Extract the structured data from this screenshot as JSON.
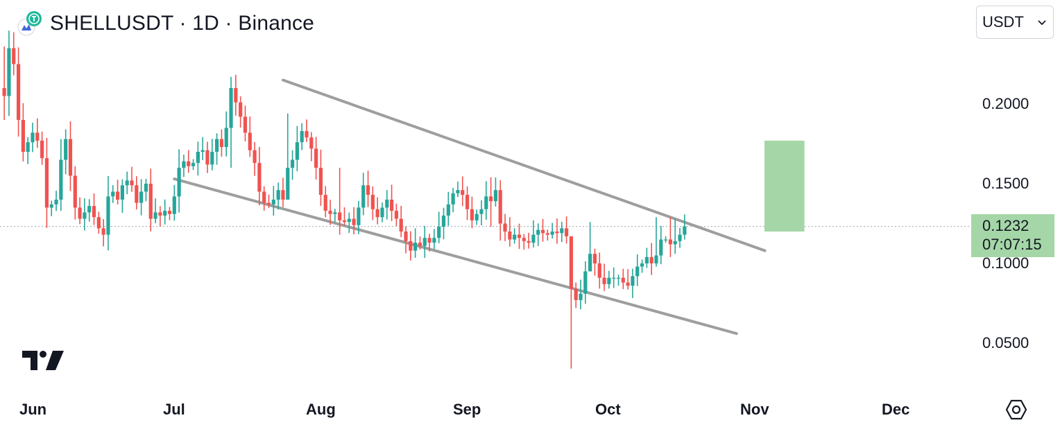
{
  "header": {
    "title": "SHELLUSDT · 1D · Binance"
  },
  "currency_select": {
    "value": "USDT",
    "icon": "chevron-down-icon"
  },
  "last_price": {
    "value": "0.1232",
    "countdown": "07:07:15"
  },
  "colors": {
    "up": "#26a69a",
    "down": "#ef5350",
    "target_box": "#a5d6a7",
    "trendline": "#9e9e9e"
  },
  "chart_data": {
    "type": "candlestick",
    "title": "SHELLUSDT · 1D · Binance",
    "y_tick_labels": [
      "0.2000",
      "0.1500",
      "0.1000",
      "0.0500"
    ],
    "x_tick_labels": [
      "Jun",
      "Jul",
      "Aug",
      "Sep",
      "Oct",
      "Nov",
      "Dec"
    ],
    "ylim": [
      0.03,
      0.24
    ],
    "grid": false,
    "approx_closes": [
      0.205,
      0.235,
      0.225,
      0.19,
      0.17,
      0.176,
      0.182,
      0.177,
      0.166,
      0.135,
      0.137,
      0.14,
      0.165,
      0.178,
      0.155,
      0.135,
      0.128,
      0.132,
      0.136,
      0.129,
      0.122,
      0.118,
      0.142,
      0.145,
      0.14,
      0.149,
      0.152,
      0.149,
      0.138,
      0.145,
      0.15,
      0.128,
      0.132,
      0.13,
      0.133,
      0.131,
      0.142,
      0.16,
      0.164,
      0.161,
      0.163,
      0.17,
      0.171,
      0.162,
      0.17,
      0.178,
      0.173,
      0.185,
      0.21,
      0.201,
      0.192,
      0.182,
      0.171,
      0.163,
      0.145,
      0.138,
      0.137,
      0.14,
      0.146,
      0.14,
      0.16,
      0.165,
      0.176,
      0.183,
      0.179,
      0.172,
      0.16,
      0.143,
      0.133,
      0.131,
      0.132,
      0.127,
      0.126,
      0.128,
      0.124,
      0.135,
      0.149,
      0.143,
      0.134,
      0.129,
      0.135,
      0.14,
      0.133,
      0.128,
      0.12,
      0.114,
      0.108,
      0.113,
      0.111,
      0.116,
      0.113,
      0.116,
      0.123,
      0.13,
      0.137,
      0.144,
      0.146,
      0.143,
      0.134,
      0.127,
      0.131,
      0.134,
      0.142,
      0.139,
      0.146,
      0.125,
      0.12,
      0.115,
      0.118,
      0.116,
      0.114,
      0.113,
      0.118,
      0.121,
      0.119,
      0.118,
      0.12,
      0.119,
      0.122,
      0.117,
      0.084,
      0.077,
      0.081,
      0.095,
      0.106,
      0.1,
      0.091,
      0.087,
      0.091,
      0.091,
      0.091,
      0.088,
      0.086,
      0.092,
      0.098,
      0.1,
      0.104,
      0.1,
      0.105,
      0.115,
      0.115,
      0.112,
      0.114,
      0.118,
      0.1232
    ],
    "annotations": {
      "upper_channel": {
        "start": [
          "Jul 24",
          0.215
        ],
        "end": [
          "Nov 3",
          0.108
        ]
      },
      "lower_channel": {
        "start": [
          "Jul 1",
          0.153
        ],
        "end": [
          "Oct 28",
          0.056
        ]
      },
      "target_zone": {
        "from": [
          "Nov 1",
          0.12
        ],
        "to": [
          "Nov 3",
          0.177
        ]
      }
    }
  }
}
